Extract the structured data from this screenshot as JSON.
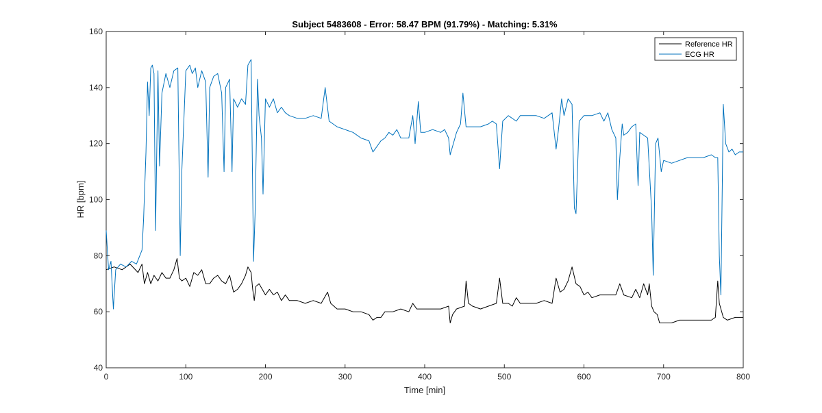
{
  "chart_data": {
    "type": "line",
    "title": "Subject 5483608 - Error: 58.47 BPM (91.79%) - Matching: 5.31%",
    "xlabel": "Time [min]",
    "ylabel": "HR [bpm]",
    "xlim": [
      0,
      800
    ],
    "ylim": [
      40,
      160
    ],
    "xticks": [
      0,
      100,
      200,
      300,
      400,
      500,
      600,
      700,
      800
    ],
    "yticks": [
      40,
      60,
      80,
      100,
      120,
      140,
      160
    ],
    "grid": false,
    "legend_position": "top-right",
    "series": [
      {
        "name": "Reference HR",
        "color": "#000000",
        "points": [
          [
            0,
            75
          ],
          [
            10,
            76
          ],
          [
            20,
            75
          ],
          [
            30,
            77
          ],
          [
            40,
            74
          ],
          [
            45,
            77
          ],
          [
            48,
            70
          ],
          [
            52,
            74
          ],
          [
            56,
            70
          ],
          [
            60,
            73
          ],
          [
            65,
            71
          ],
          [
            70,
            74
          ],
          [
            75,
            72
          ],
          [
            80,
            72
          ],
          [
            85,
            75
          ],
          [
            89,
            79
          ],
          [
            92,
            72
          ],
          [
            95,
            71
          ],
          [
            100,
            72
          ],
          [
            105,
            69
          ],
          [
            110,
            74
          ],
          [
            115,
            73
          ],
          [
            120,
            75
          ],
          [
            125,
            70
          ],
          [
            130,
            70
          ],
          [
            135,
            72
          ],
          [
            140,
            73
          ],
          [
            145,
            71
          ],
          [
            150,
            70
          ],
          [
            155,
            73
          ],
          [
            160,
            67
          ],
          [
            165,
            68
          ],
          [
            170,
            70
          ],
          [
            175,
            73
          ],
          [
            178,
            76
          ],
          [
            182,
            74
          ],
          [
            184,
            68
          ],
          [
            186,
            64
          ],
          [
            188,
            69
          ],
          [
            192,
            70
          ],
          [
            196,
            68
          ],
          [
            200,
            66
          ],
          [
            205,
            68
          ],
          [
            210,
            66
          ],
          [
            215,
            67
          ],
          [
            220,
            64
          ],
          [
            225,
            66
          ],
          [
            230,
            64
          ],
          [
            240,
            64
          ],
          [
            250,
            63
          ],
          [
            260,
            64
          ],
          [
            270,
            63
          ],
          [
            278,
            67
          ],
          [
            282,
            63
          ],
          [
            290,
            61
          ],
          [
            300,
            61
          ],
          [
            310,
            60
          ],
          [
            320,
            60
          ],
          [
            330,
            59
          ],
          [
            335,
            57
          ],
          [
            340,
            58
          ],
          [
            345,
            58
          ],
          [
            350,
            60
          ],
          [
            360,
            60
          ],
          [
            370,
            61
          ],
          [
            380,
            60
          ],
          [
            385,
            63
          ],
          [
            390,
            61
          ],
          [
            400,
            61
          ],
          [
            410,
            61
          ],
          [
            420,
            61
          ],
          [
            430,
            62
          ],
          [
            432,
            56
          ],
          [
            435,
            59
          ],
          [
            440,
            61
          ],
          [
            450,
            62
          ],
          [
            452,
            71
          ],
          [
            455,
            63
          ],
          [
            460,
            62
          ],
          [
            470,
            61
          ],
          [
            480,
            62
          ],
          [
            490,
            63
          ],
          [
            494,
            72
          ],
          [
            498,
            63
          ],
          [
            505,
            63
          ],
          [
            510,
            62
          ],
          [
            515,
            65
          ],
          [
            520,
            63
          ],
          [
            530,
            63
          ],
          [
            540,
            63
          ],
          [
            550,
            64
          ],
          [
            560,
            63
          ],
          [
            565,
            72
          ],
          [
            570,
            67
          ],
          [
            575,
            68
          ],
          [
            580,
            71
          ],
          [
            585,
            76
          ],
          [
            590,
            70
          ],
          [
            595,
            69
          ],
          [
            600,
            66
          ],
          [
            605,
            67
          ],
          [
            610,
            65
          ],
          [
            620,
            66
          ],
          [
            630,
            66
          ],
          [
            640,
            66
          ],
          [
            645,
            70
          ],
          [
            650,
            66
          ],
          [
            660,
            65
          ],
          [
            665,
            68
          ],
          [
            670,
            65
          ],
          [
            675,
            70
          ],
          [
            680,
            66
          ],
          [
            682,
            70
          ],
          [
            685,
            62
          ],
          [
            688,
            60
          ],
          [
            692,
            59
          ],
          [
            695,
            56
          ],
          [
            700,
            56
          ],
          [
            710,
            56
          ],
          [
            720,
            57
          ],
          [
            730,
            57
          ],
          [
            740,
            57
          ],
          [
            750,
            57
          ],
          [
            760,
            57
          ],
          [
            765,
            58
          ],
          [
            768,
            71
          ],
          [
            770,
            63
          ],
          [
            775,
            58
          ],
          [
            780,
            57
          ],
          [
            790,
            58
          ],
          [
            800,
            58
          ]
        ]
      },
      {
        "name": "ECG HR",
        "color": "#0072BD",
        "points": [
          [
            0,
            89
          ],
          [
            3,
            75
          ],
          [
            6,
            78
          ],
          [
            9,
            61
          ],
          [
            12,
            75
          ],
          [
            18,
            77
          ],
          [
            25,
            76
          ],
          [
            32,
            78
          ],
          [
            38,
            77
          ],
          [
            45,
            82
          ],
          [
            47,
            93
          ],
          [
            50,
            117
          ],
          [
            52,
            142
          ],
          [
            54,
            130
          ],
          [
            56,
            147
          ],
          [
            58,
            148
          ],
          [
            60,
            145
          ],
          [
            62,
            89
          ],
          [
            65,
            146
          ],
          [
            67,
            112
          ],
          [
            70,
            138
          ],
          [
            75,
            145
          ],
          [
            80,
            140
          ],
          [
            85,
            146
          ],
          [
            90,
            147
          ],
          [
            93,
            80
          ],
          [
            95,
            110
          ],
          [
            100,
            146
          ],
          [
            105,
            148
          ],
          [
            108,
            145
          ],
          [
            112,
            147
          ],
          [
            115,
            140
          ],
          [
            120,
            146
          ],
          [
            125,
            142
          ],
          [
            128,
            108
          ],
          [
            130,
            140
          ],
          [
            135,
            144
          ],
          [
            140,
            145
          ],
          [
            145,
            138
          ],
          [
            148,
            110
          ],
          [
            150,
            140
          ],
          [
            155,
            143
          ],
          [
            158,
            110
          ],
          [
            160,
            136
          ],
          [
            165,
            133
          ],
          [
            170,
            136
          ],
          [
            175,
            134
          ],
          [
            178,
            148
          ],
          [
            182,
            150
          ],
          [
            185,
            78
          ],
          [
            187,
            95
          ],
          [
            190,
            143
          ],
          [
            192,
            130
          ],
          [
            195,
            122
          ],
          [
            197,
            102
          ],
          [
            200,
            136
          ],
          [
            205,
            133
          ],
          [
            210,
            136
          ],
          [
            215,
            131
          ],
          [
            220,
            133
          ],
          [
            225,
            131
          ],
          [
            230,
            130
          ],
          [
            240,
            129
          ],
          [
            250,
            129
          ],
          [
            260,
            130
          ],
          [
            270,
            129
          ],
          [
            275,
            140
          ],
          [
            280,
            128
          ],
          [
            290,
            126
          ],
          [
            300,
            125
          ],
          [
            310,
            124
          ],
          [
            320,
            122
          ],
          [
            330,
            121
          ],
          [
            335,
            117
          ],
          [
            340,
            119
          ],
          [
            345,
            121
          ],
          [
            350,
            122
          ],
          [
            355,
            124
          ],
          [
            360,
            123
          ],
          [
            365,
            125
          ],
          [
            370,
            122
          ],
          [
            380,
            122
          ],
          [
            385,
            130
          ],
          [
            388,
            120
          ],
          [
            392,
            135
          ],
          [
            395,
            124
          ],
          [
            400,
            124
          ],
          [
            410,
            125
          ],
          [
            420,
            124
          ],
          [
            425,
            125
          ],
          [
            430,
            122
          ],
          [
            432,
            116
          ],
          [
            440,
            124
          ],
          [
            445,
            127
          ],
          [
            448,
            138
          ],
          [
            452,
            126
          ],
          [
            460,
            126
          ],
          [
            470,
            126
          ],
          [
            480,
            127
          ],
          [
            485,
            128
          ],
          [
            490,
            127
          ],
          [
            494,
            111
          ],
          [
            498,
            128
          ],
          [
            505,
            130
          ],
          [
            515,
            128
          ],
          [
            520,
            130
          ],
          [
            530,
            130
          ],
          [
            540,
            130
          ],
          [
            550,
            129
          ],
          [
            555,
            130
          ],
          [
            560,
            131
          ],
          [
            565,
            118
          ],
          [
            568,
            125
          ],
          [
            572,
            136
          ],
          [
            575,
            130
          ],
          [
            580,
            136
          ],
          [
            585,
            134
          ],
          [
            588,
            97
          ],
          [
            590,
            95
          ],
          [
            594,
            128
          ],
          [
            600,
            130
          ],
          [
            610,
            130
          ],
          [
            620,
            131
          ],
          [
            625,
            128
          ],
          [
            630,
            131
          ],
          [
            635,
            125
          ],
          [
            640,
            122
          ],
          [
            642,
            100
          ],
          [
            645,
            115
          ],
          [
            648,
            127
          ],
          [
            650,
            123
          ],
          [
            655,
            124
          ],
          [
            660,
            126
          ],
          [
            665,
            127
          ],
          [
            668,
            105
          ],
          [
            670,
            124
          ],
          [
            675,
            123
          ],
          [
            680,
            122
          ],
          [
            685,
            96
          ],
          [
            687,
            73
          ],
          [
            690,
            120
          ],
          [
            693,
            122
          ],
          [
            697,
            110
          ],
          [
            700,
            114
          ],
          [
            710,
            113
          ],
          [
            720,
            114
          ],
          [
            730,
            115
          ],
          [
            740,
            115
          ],
          [
            750,
            115
          ],
          [
            760,
            116
          ],
          [
            765,
            115
          ],
          [
            768,
            115
          ],
          [
            770,
            80
          ],
          [
            772,
            66
          ],
          [
            775,
            134
          ],
          [
            778,
            120
          ],
          [
            782,
            117
          ],
          [
            786,
            118
          ],
          [
            790,
            116
          ],
          [
            795,
            117
          ],
          [
            800,
            117
          ]
        ]
      }
    ]
  }
}
